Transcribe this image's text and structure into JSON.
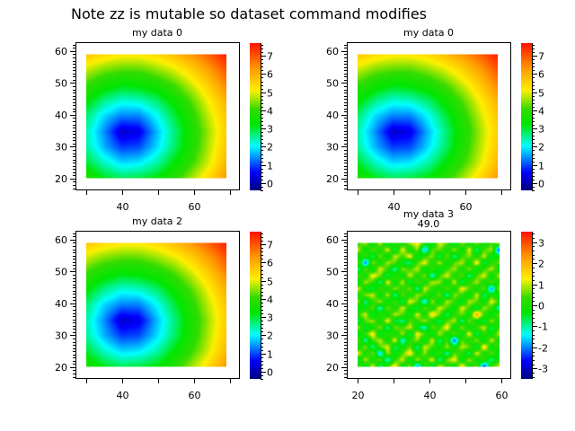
{
  "title": "Note zz is mutable so dataset command modifies",
  "chart_data": [
    {
      "type": "heatmap",
      "title": "my data 0",
      "subtitle": "",
      "xlim": [
        27,
        72.5
      ],
      "ylim": [
        16.6,
        62.8
      ],
      "xticks": [
        30,
        40,
        50,
        60,
        70
      ],
      "xticklabels": [
        "",
        "40",
        "",
        "60",
        ""
      ],
      "yticks": [
        20,
        30,
        40,
        50,
        60
      ],
      "yticklabels": [
        "20",
        "30",
        "40",
        "50",
        "60"
      ],
      "extent": [
        30,
        69,
        20,
        59
      ],
      "clim": [
        -0.4,
        7.7
      ],
      "cticks": [
        0,
        1,
        2,
        3,
        4,
        5,
        6,
        7
      ],
      "x": [
        30,
        35,
        40,
        45,
        50,
        55,
        60,
        65,
        70
      ],
      "y": [
        20,
        25,
        30,
        35,
        40,
        45,
        50,
        55,
        60
      ],
      "z": "grid_a"
    },
    {
      "type": "heatmap",
      "title": "my data 0",
      "subtitle": "",
      "xlim": [
        27,
        72.5
      ],
      "ylim": [
        16.6,
        62.8
      ],
      "xticks": [
        30,
        40,
        50,
        60,
        70
      ],
      "xticklabels": [
        "",
        "40",
        "",
        "60",
        ""
      ],
      "yticks": [
        20,
        30,
        40,
        50,
        60
      ],
      "yticklabels": [
        "20",
        "30",
        "40",
        "50",
        "60"
      ],
      "extent": [
        30,
        69,
        20,
        59
      ],
      "clim": [
        -0.4,
        7.7
      ],
      "cticks": [
        0,
        1,
        2,
        3,
        4,
        5,
        6,
        7
      ],
      "x": [
        30,
        35,
        40,
        45,
        50,
        55,
        60,
        65,
        70
      ],
      "y": [
        20,
        25,
        30,
        35,
        40,
        45,
        50,
        55,
        60
      ],
      "z": "grid_a"
    },
    {
      "type": "heatmap",
      "title": "my data 2",
      "subtitle": "",
      "xlim": [
        27,
        72.5
      ],
      "ylim": [
        16.6,
        62.8
      ],
      "xticks": [
        30,
        40,
        50,
        60,
        70
      ],
      "xticklabels": [
        "",
        "40",
        "",
        "60",
        ""
      ],
      "yticks": [
        20,
        30,
        40,
        50,
        60
      ],
      "yticklabels": [
        "20",
        "30",
        "40",
        "50",
        "60"
      ],
      "extent": [
        30,
        69,
        20,
        59
      ],
      "clim": [
        -0.4,
        7.7
      ],
      "cticks": [
        0,
        1,
        2,
        3,
        4,
        5,
        6,
        7
      ],
      "x": [
        30,
        35,
        40,
        45,
        50,
        55,
        60,
        65,
        70
      ],
      "y": [
        20,
        25,
        30,
        35,
        40,
        45,
        50,
        55,
        60
      ],
      "z": "grid_a"
    },
    {
      "type": "heatmap",
      "title": "my data 3",
      "subtitle": "49.0",
      "xlim": [
        17,
        62.5
      ],
      "ylim": [
        16.6,
        62.8
      ],
      "xticks": [
        20,
        30,
        40,
        50,
        60
      ],
      "xticklabels": [
        "20",
        "",
        "40",
        "",
        "60"
      ],
      "yticks": [
        20,
        30,
        40,
        50,
        60
      ],
      "yticklabels": [
        "20",
        "30",
        "40",
        "50",
        "60"
      ],
      "extent": [
        20,
        59.5,
        20,
        59
      ],
      "clim": [
        -3.5,
        3.5
      ],
      "cticks": [
        -3,
        -2,
        -1,
        0,
        1,
        2,
        3
      ],
      "z": "grid_noise"
    }
  ],
  "grid_a": [
    [
      3.7,
      3.1,
      2.8,
      2.9,
      3.2,
      3.8,
      4.6,
      5.4,
      6.3
    ],
    [
      3.0,
      2.3,
      1.8,
      1.9,
      2.4,
      3.2,
      4.0,
      4.9,
      5.9
    ],
    [
      2.5,
      1.6,
      0.9,
      1.0,
      1.8,
      2.7,
      3.7,
      4.7,
      5.7
    ],
    [
      2.4,
      1.4,
      0.2,
      0.4,
      1.6,
      2.6,
      3.6,
      4.6,
      5.6
    ],
    [
      2.7,
      1.8,
      1.3,
      1.3,
      2.0,
      2.9,
      3.8,
      4.8,
      5.7
    ],
    [
      3.3,
      2.6,
      2.2,
      2.3,
      2.7,
      3.4,
      4.2,
      5.1,
      6.0
    ],
    [
      4.0,
      3.5,
      3.2,
      3.3,
      3.6,
      4.1,
      4.8,
      5.6,
      6.5
    ],
    [
      4.8,
      4.4,
      4.2,
      4.2,
      4.5,
      4.9,
      5.5,
      6.2,
      7.0
    ],
    [
      5.7,
      5.4,
      5.2,
      5.2,
      5.4,
      5.8,
      6.3,
      6.9,
      7.6
    ]
  ],
  "grid_noise": [
    [
      0.4,
      -0.6,
      1.2,
      -1.0,
      0.3,
      1.5,
      -0.4,
      0.8,
      -2.1,
      0.5,
      -0.9,
      1.1,
      0.2,
      -0.5,
      1.6,
      -0.3,
      0.7,
      -2.6,
      0.4,
      1.0
    ],
    [
      -0.8,
      1.0,
      -0.3,
      0.6,
      -1.4,
      0.2,
      1.1,
      -0.7,
      0.9,
      -0.2,
      1.3,
      -1.1,
      0.6,
      1.4,
      -0.6,
      0.9,
      -0.4,
      0.3,
      -1.0,
      0.2
    ],
    [
      1.3,
      -0.2,
      0.7,
      -1.8,
      0.9,
      -0.5,
      0.4,
      1.6,
      -0.3,
      0.8,
      -0.6,
      0.3,
      -1.2,
      0.5,
      0.1,
      -0.9,
      1.2,
      -0.2,
      0.6,
      -0.7
    ],
    [
      -0.3,
      0.8,
      -1.1,
      0.5,
      1.2,
      -0.8,
      -0.2,
      0.5,
      -1.0,
      1.1,
      0.4,
      -0.4,
      0.9,
      -0.3,
      1.0,
      0.6,
      -0.8,
      1.7,
      -0.5,
      0.4
    ],
    [
      0.6,
      -1.2,
      0.4,
      1.0,
      -0.4,
      1.3,
      -1.5,
      0.2,
      0.7,
      -0.6,
      1.2,
      -0.9,
      0.3,
      -2.4,
      0.5,
      -0.2,
      0.8,
      -0.6,
      1.1,
      -0.3
    ],
    [
      -0.5,
      0.3,
      1.5,
      -0.7,
      0.2,
      -0.3,
      0.9,
      -0.8,
      1.4,
      0.3,
      -0.7,
      1.0,
      -0.3,
      0.6,
      -0.5,
      1.3,
      -0.9,
      0.2,
      -0.4,
      1.0
    ],
    [
      1.0,
      -0.7,
      -0.2,
      0.8,
      -1.1,
      0.7,
      0.3,
      1.1,
      -0.5,
      -1.3,
      0.6,
      0.2,
      1.5,
      -0.6,
      0.8,
      -0.4,
      0.3,
      1.1,
      -0.8,
      0.3
    ],
    [
      -0.9,
      0.5,
      0.9,
      -0.4,
      1.4,
      -0.6,
      -1.0,
      0.4,
      0.2,
      0.9,
      -0.2,
      -0.8,
      0.4,
      1.0,
      -1.1,
      0.7,
      -0.3,
      -0.7,
      0.9,
      -0.2
    ],
    [
      0.3,
      1.1,
      -0.8,
      0.2,
      -0.3,
      1.0,
      0.5,
      -0.6,
      1.2,
      -0.4,
      1.7,
      0.5,
      -0.9,
      0.2,
      0.6,
      -0.5,
      2.4,
      0.1,
      -0.6,
      0.7
    ],
    [
      -0.4,
      -0.3,
      0.6,
      -1.3,
      0.7,
      -0.2,
      1.2,
      -0.2,
      -0.7,
      0.6,
      -0.3,
      1.1,
      0.4,
      -0.5,
      1.2,
      0.3,
      -0.8,
      0.9,
      0.2,
      -1.2
    ],
    [
      0.8,
      -1.0,
      0.2,
      0.9,
      -0.6,
      0.4,
      -0.9,
      1.3,
      0.4,
      -1.6,
      0.9,
      -0.6,
      1.0,
      0.3,
      -0.7,
      1.0,
      0.5,
      -0.4,
      1.3,
      0.2
    ],
    [
      -0.2,
      0.7,
      1.1,
      -0.5,
      1.0,
      -1.1,
      0.6,
      -0.3,
      0.9,
      0.3,
      -0.4,
      0.7,
      -1.2,
      0.8,
      0.2,
      -0.6,
      1.1,
      -0.9,
      0.1,
      -0.6
    ],
    [
      1.2,
      -0.4,
      -0.7,
      0.4,
      -0.2,
      0.8,
      0.1,
      0.7,
      -1.2,
      1.1,
      0.2,
      -0.3,
      0.6,
      -0.4,
      1.4,
      0.5,
      -0.3,
      0.7,
      -2.2,
      0.9
    ],
    [
      -0.6,
      0.9,
      0.3,
      -1.0,
      1.3,
      -0.5,
      1.0,
      -0.8,
      0.5,
      -0.2,
      1.0,
      0.8,
      -0.5,
      1.1,
      -0.9,
      0.2,
      0.9,
      -0.2,
      0.5,
      -0.3
    ],
    [
      0.5,
      -0.2,
      1.4,
      0.6,
      -0.8,
      0.3,
      -0.4,
      1.1,
      -0.1,
      0.7,
      -1.4,
      0.3,
      1.2,
      -0.2,
      0.6,
      -1.0,
      0.4,
      1.2,
      -0.5,
      1.0
    ],
    [
      -1.0,
      0.6,
      -0.5,
      1.2,
      0.2,
      -1.2,
      0.8,
      0.3,
      1.0,
      -0.5,
      0.4,
      -0.7,
      0.3,
      0.9,
      -0.3,
      0.8,
      -0.6,
      0.3,
      1.0,
      -0.4
    ],
    [
      0.7,
      -2.3,
      0.8,
      -0.3,
      0.9,
      0.5,
      -0.6,
      -0.9,
      0.4,
      1.3,
      -0.2,
      1.0,
      -0.4,
      0.5,
      1.0,
      -0.4,
      1.5,
      -0.8,
      0.2,
      0.6
    ],
    [
      -0.3,
      0.4,
      -0.9,
      0.7,
      -0.5,
      1.1,
      0.3,
      1.4,
      -0.7,
      0.2,
      0.8,
      -0.9,
      0.7,
      -1.1,
      0.3,
      0.7,
      -0.2,
      1.1,
      -0.6,
      -0.1
    ],
    [
      1.1,
      -0.5,
      0.6,
      -0.2,
      1.2,
      -0.8,
      1.3,
      -0.4,
      0.8,
      -1.9,
      0.5,
      0.6,
      -0.2,
      0.9,
      -0.5,
      1.2,
      -0.9,
      0.4,
      0.9,
      -2.5
    ],
    [
      0.2,
      0.9,
      -0.4,
      1.0,
      -0.7,
      0.3,
      -0.2,
      0.8,
      1.4,
      0.1,
      -0.6,
      1.2,
      0.5,
      -0.8,
      0.8,
      -0.3,
      0.6,
      -0.2,
      0.3,
      0.7
    ]
  ]
}
